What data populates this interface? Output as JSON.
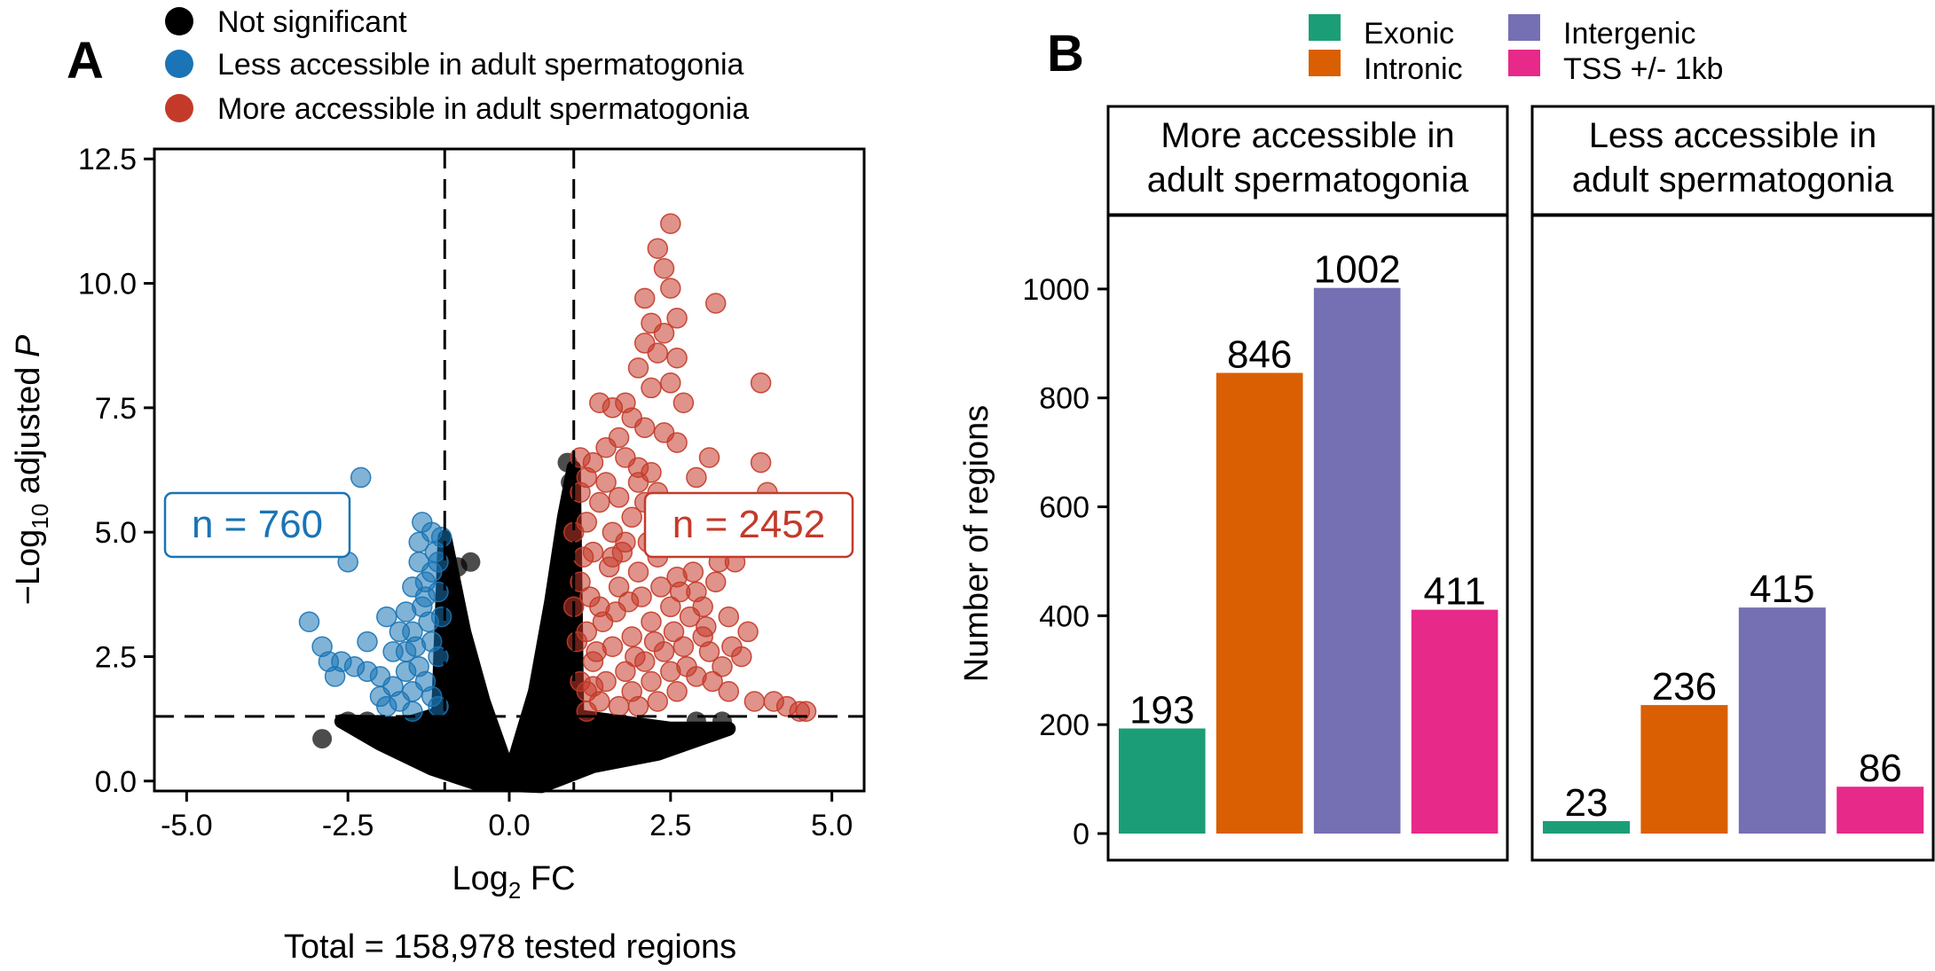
{
  "panel_labels": {
    "a": "A",
    "b": "B"
  },
  "colors": {
    "not_significant": "#000000",
    "less": "#1a74b5",
    "more": "#c43a29",
    "exonic": "#1b9e77",
    "intronic": "#d95f02",
    "intergenic": "#7570b3",
    "tss": "#e7298a"
  },
  "chart_data": [
    {
      "type": "scatter",
      "xlabel": "Log",
      "xlabel_sub": "2",
      "xlabel_suffix": " FC",
      "ylabel_prefix": "−Log",
      "ylabel_sub": "10",
      "ylabel_mid": " adjusted ",
      "ylabel_italic": "P",
      "xlim": [
        -5.5,
        5.5
      ],
      "ylim": [
        -0.2,
        12.7
      ],
      "x_ticks": [
        -5.0,
        -2.5,
        0.0,
        2.5,
        5.0
      ],
      "x_tick_labels": [
        "-5.0",
        "-2.5",
        "0.0",
        "2.5",
        "5.0"
      ],
      "y_ticks": [
        0.0,
        2.5,
        5.0,
        7.5,
        10.0,
        12.5
      ],
      "y_tick_labels": [
        "0.0",
        "2.5",
        "5.0",
        "7.5",
        "10.0",
        "12.5"
      ],
      "thresholds": {
        "vlines": [
          -1,
          1
        ],
        "hline": 1.3
      },
      "legend": [
        {
          "key": "ns",
          "label": "Not significant"
        },
        {
          "key": "less",
          "label": "Less accessible in adult spermatogonia"
        },
        {
          "key": "more",
          "label": "More accessible in adult spermatogonia"
        }
      ],
      "annotations": {
        "less_count": "n = 760",
        "more_count": "n = 2452"
      },
      "caption": "Total = 158,978 tested regions",
      "series": [
        {
          "key": "less",
          "points": [
            [
              -2.3,
              6.1
            ],
            [
              -2.5,
              4.4
            ],
            [
              -3.1,
              3.2
            ],
            [
              -2.9,
              2.7
            ],
            [
              -2.8,
              2.4
            ],
            [
              -2.6,
              2.4
            ],
            [
              -2.7,
              2.1
            ],
            [
              -2.4,
              2.3
            ],
            [
              -2.2,
              2.8
            ],
            [
              -2.2,
              2.2
            ],
            [
              -2.0,
              2.1
            ],
            [
              -1.8,
              2.6
            ],
            [
              -1.9,
              3.3
            ],
            [
              -1.7,
              3.0
            ],
            [
              -1.6,
              3.4
            ],
            [
              -1.5,
              3.9
            ],
            [
              -1.4,
              4.4
            ],
            [
              -1.4,
              4.8
            ],
            [
              -1.35,
              5.2
            ],
            [
              -1.2,
              5.0
            ],
            [
              -1.15,
              4.6
            ],
            [
              -1.1,
              4.4
            ],
            [
              -1.1,
              3.8
            ],
            [
              -1.05,
              3.3
            ],
            [
              -1.3,
              3.7
            ],
            [
              -1.25,
              3.2
            ],
            [
              -1.2,
              2.8
            ],
            [
              -1.1,
              2.5
            ],
            [
              -1.4,
              2.3
            ],
            [
              -1.3,
              2.0
            ],
            [
              -1.2,
              1.7
            ],
            [
              -1.1,
              1.5
            ],
            [
              -1.5,
              1.8
            ],
            [
              -1.6,
              2.2
            ],
            [
              -1.7,
              1.6
            ],
            [
              -1.5,
              1.4
            ],
            [
              -1.8,
              1.9
            ],
            [
              -1.9,
              1.5
            ],
            [
              -2.0,
              1.7
            ],
            [
              -1.3,
              4.0
            ],
            [
              -1.5,
              3.0
            ],
            [
              -1.6,
              2.6
            ],
            [
              -1.05,
              4.9
            ],
            [
              -1.2,
              4.2
            ],
            [
              -1.35,
              3.5
            ],
            [
              -1.45,
              2.7
            ]
          ]
        },
        {
          "key": "more",
          "points": [
            [
              2.5,
              11.2
            ],
            [
              2.3,
              10.7
            ],
            [
              2.4,
              10.3
            ],
            [
              2.5,
              9.9
            ],
            [
              2.1,
              9.7
            ],
            [
              3.2,
              9.6
            ],
            [
              2.6,
              9.3
            ],
            [
              2.2,
              9.2
            ],
            [
              2.4,
              9.0
            ],
            [
              2.1,
              8.8
            ],
            [
              2.3,
              8.6
            ],
            [
              2.6,
              8.5
            ],
            [
              2.0,
              8.3
            ],
            [
              2.5,
              8.0
            ],
            [
              2.2,
              7.9
            ],
            [
              2.7,
              7.6
            ],
            [
              3.9,
              8.0
            ],
            [
              1.8,
              7.6
            ],
            [
              1.6,
              7.5
            ],
            [
              1.4,
              7.6
            ],
            [
              1.9,
              7.3
            ],
            [
              2.1,
              7.1
            ],
            [
              2.4,
              7.0
            ],
            [
              2.6,
              6.8
            ],
            [
              1.7,
              6.9
            ],
            [
              1.5,
              6.7
            ],
            [
              1.3,
              6.4
            ],
            [
              1.8,
              6.5
            ],
            [
              2.0,
              6.3
            ],
            [
              2.2,
              6.2
            ],
            [
              2.9,
              6.1
            ],
            [
              3.1,
              6.5
            ],
            [
              3.9,
              6.4
            ],
            [
              4.0,
              5.8
            ],
            [
              3.6,
              5.4
            ],
            [
              3.3,
              5.2
            ],
            [
              3.0,
              5.0
            ],
            [
              2.8,
              4.7
            ],
            [
              3.5,
              4.4
            ],
            [
              3.2,
              4.0
            ],
            [
              2.9,
              3.8
            ],
            [
              3.4,
              3.3
            ],
            [
              3.7,
              3.0
            ],
            [
              3.0,
              2.9
            ],
            [
              3.6,
              2.5
            ],
            [
              3.3,
              2.3
            ],
            [
              2.9,
              2.1
            ],
            [
              3.4,
              1.8
            ],
            [
              3.8,
              1.6
            ],
            [
              4.1,
              1.6
            ],
            [
              4.3,
              1.5
            ],
            [
              4.5,
              1.4
            ],
            [
              4.6,
              1.4
            ],
            [
              2.6,
              1.8
            ],
            [
              2.3,
              1.6
            ],
            [
              2.0,
              1.5
            ],
            [
              1.7,
              1.5
            ],
            [
              1.4,
              1.6
            ],
            [
              1.2,
              1.8
            ],
            [
              1.1,
              2.0
            ],
            [
              1.3,
              2.4
            ],
            [
              1.6,
              2.7
            ],
            [
              1.9,
              2.9
            ],
            [
              2.2,
              3.2
            ],
            [
              2.5,
              3.5
            ],
            [
              1.2,
              3.0
            ],
            [
              1.4,
              3.5
            ],
            [
              1.7,
              3.9
            ],
            [
              2.0,
              4.2
            ],
            [
              2.3,
              4.5
            ],
            [
              1.1,
              4.0
            ],
            [
              1.3,
              4.6
            ],
            [
              1.6,
              5.0
            ],
            [
              1.9,
              5.3
            ],
            [
              2.1,
              5.6
            ],
            [
              1.2,
              5.2
            ],
            [
              1.4,
              5.6
            ],
            [
              1.1,
              5.8
            ],
            [
              1.5,
              6.0
            ],
            [
              2.4,
              5.0
            ],
            [
              2.7,
              5.3
            ],
            [
              2.6,
              4.1
            ],
            [
              2.8,
              3.3
            ],
            [
              2.4,
              2.6
            ],
            [
              2.1,
              2.4
            ],
            [
              1.8,
              2.2
            ],
            [
              1.5,
              2.0
            ],
            [
              1.2,
              1.4
            ],
            [
              1.9,
              1.8
            ],
            [
              2.2,
              2.0
            ],
            [
              2.7,
              2.7
            ],
            [
              3.1,
              2.6
            ],
            [
              3.0,
              3.5
            ],
            [
              2.5,
              2.2
            ],
            [
              1.3,
              1.9
            ],
            [
              1.0,
              3.5
            ],
            [
              1.05,
              2.8
            ],
            [
              1.15,
              4.5
            ],
            [
              1.25,
              3.7
            ],
            [
              1.35,
              2.6
            ],
            [
              1.45,
              3.2
            ],
            [
              1.55,
              4.3
            ],
            [
              1.65,
              3.4
            ],
            [
              1.75,
              4.6
            ],
            [
              1.85,
              3.6
            ],
            [
              1.95,
              2.5
            ],
            [
              2.05,
              3.7
            ],
            [
              2.15,
              4.8
            ],
            [
              2.25,
              2.8
            ],
            [
              2.35,
              3.9
            ],
            [
              2.55,
              3.0
            ],
            [
              2.65,
              3.8
            ],
            [
              2.75,
              2.3
            ],
            [
              2.85,
              4.2
            ],
            [
              3.05,
              3.1
            ],
            [
              3.15,
              2.0
            ],
            [
              3.25,
              4.4
            ],
            [
              3.45,
              2.7
            ],
            [
              1.0,
              5.0
            ],
            [
              1.1,
              6.5
            ],
            [
              1.2,
              6.1
            ],
            [
              1.7,
              5.7
            ],
            [
              1.8,
              4.8
            ],
            [
              2.0,
              6.0
            ],
            [
              2.3,
              5.8
            ],
            [
              1.6,
              4.5
            ]
          ]
        }
      ]
    },
    {
      "type": "bar",
      "ylabel": "Number of regions",
      "ylim": [
        0,
        1135
      ],
      "y_ticks": [
        0,
        200,
        400,
        600,
        800,
        1000
      ],
      "y_tick_labels": [
        "0",
        "200",
        "400",
        "600",
        "800",
        "1000"
      ],
      "legend": [
        {
          "key": "exonic",
          "label": "Exonic"
        },
        {
          "key": "intronic",
          "label": "Intronic"
        },
        {
          "key": "intergenic",
          "label": "Intergenic"
        },
        {
          "key": "tss",
          "label": "TSS +/- 1kb"
        }
      ],
      "categories": [
        "Exonic",
        "Intronic",
        "Intergenic",
        "TSS +/- 1kb"
      ],
      "facets": [
        {
          "title_lines": [
            "More accessible in",
            "adult spermatogonia"
          ],
          "values": [
            193,
            846,
            1002,
            411
          ]
        },
        {
          "title_lines": [
            "Less accessible in",
            "adult spermatogonia"
          ],
          "values": [
            23,
            236,
            415,
            86
          ]
        }
      ]
    }
  ]
}
